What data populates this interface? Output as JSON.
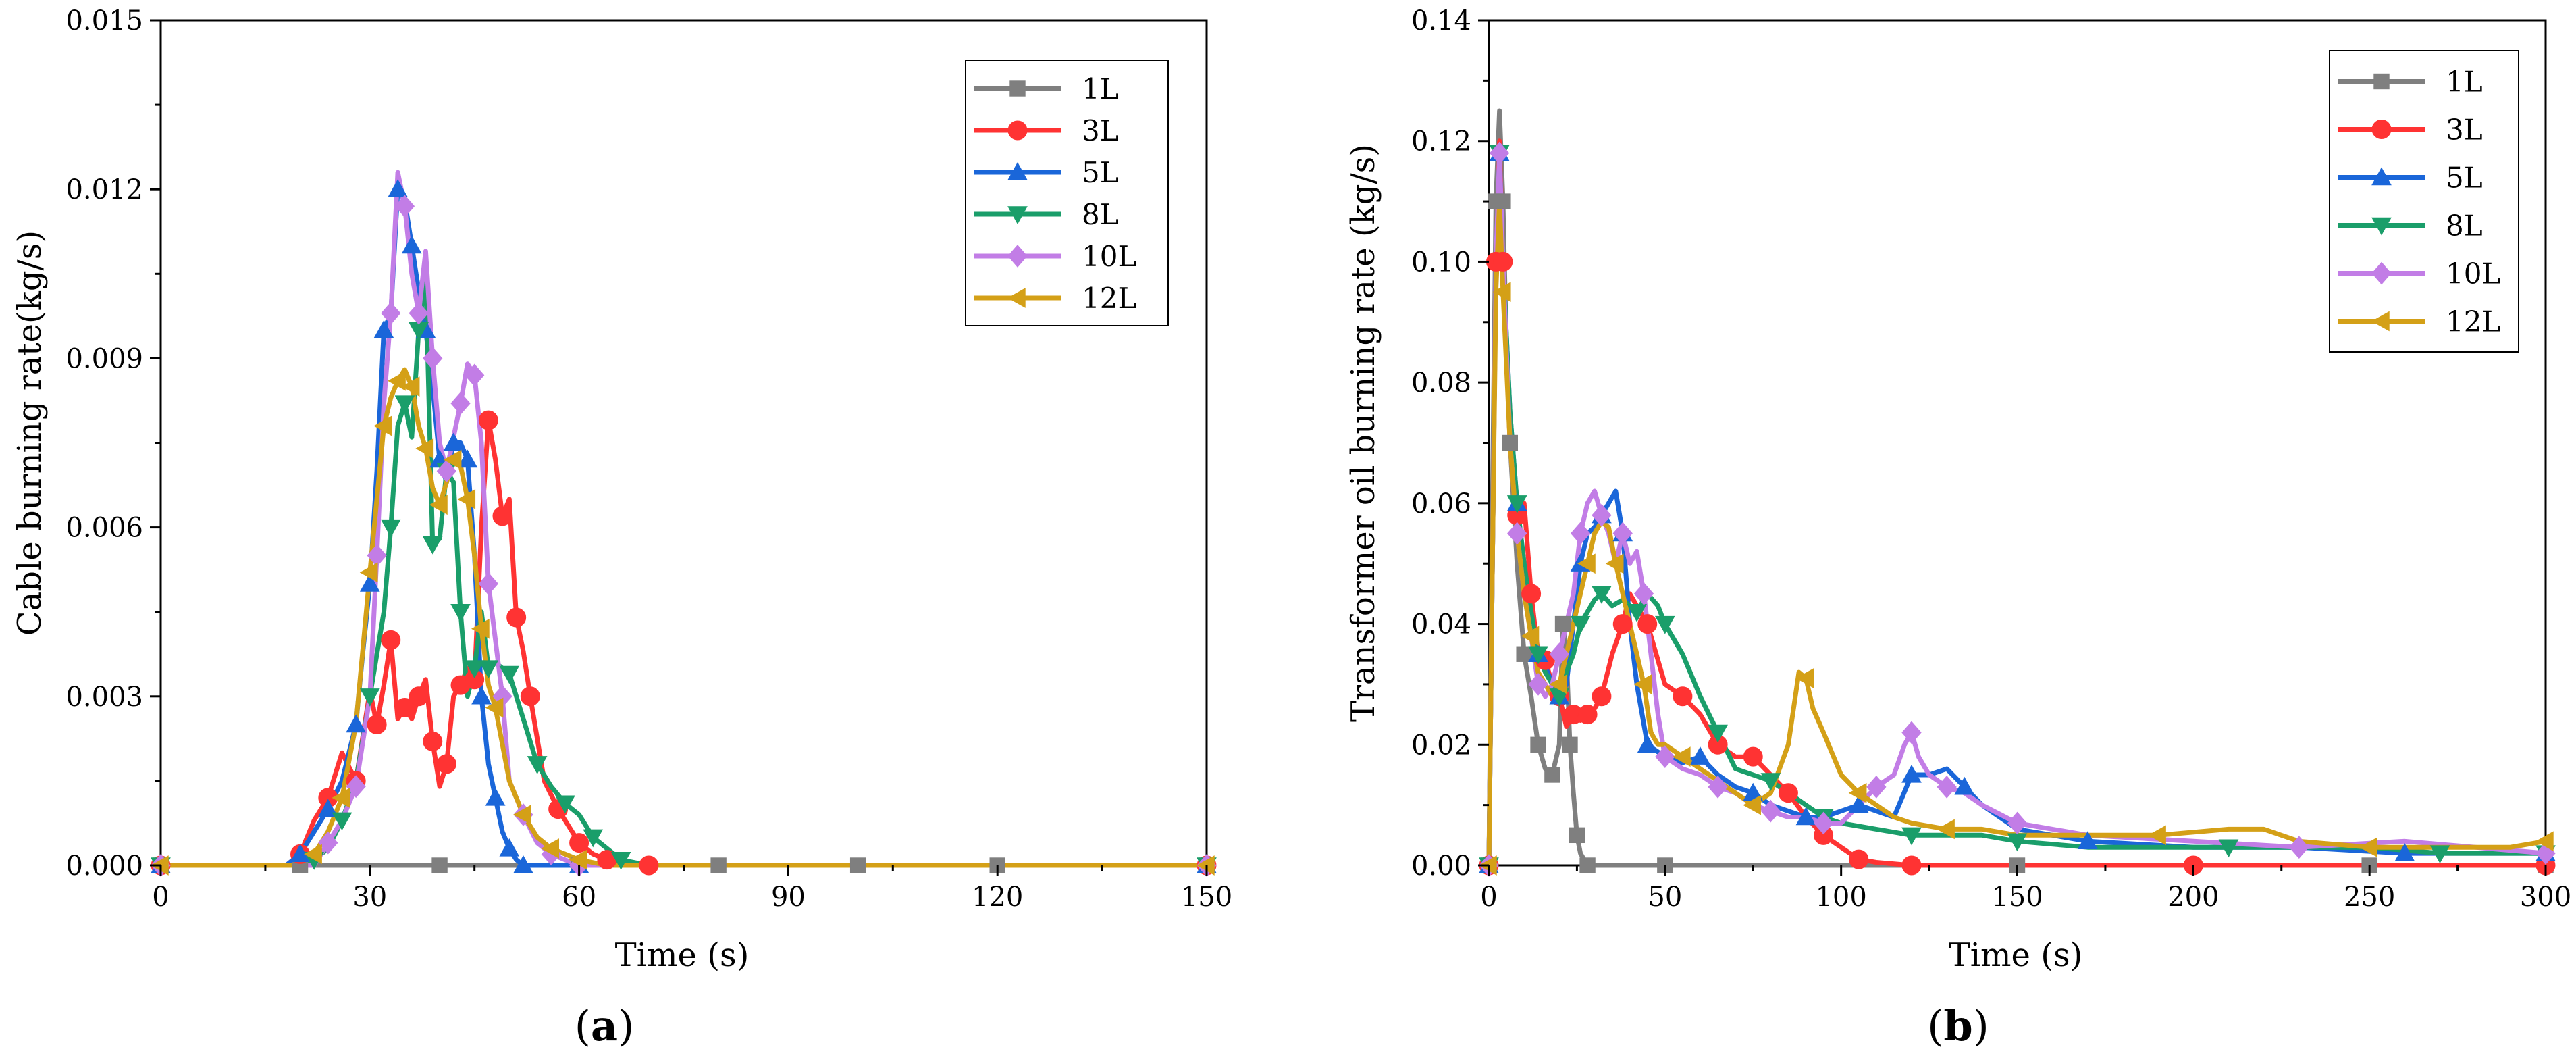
{
  "chart_data": [
    {
      "type": "line",
      "panel_label": "a",
      "xlabel": "Time (s)",
      "ylabel": "Cable burning rate(kg/s)",
      "xlim": [
        0,
        150
      ],
      "ylim": [
        0,
        0.015
      ],
      "xticks": [
        0,
        30,
        60,
        90,
        120,
        150
      ],
      "xtick_labels": [
        "0",
        "30",
        "60",
        "90",
        "120",
        "150"
      ],
      "yticks": [
        0,
        0.003,
        0.006,
        0.009,
        0.012,
        0.015
      ],
      "ytick_labels": [
        "0.000",
        "0.003",
        "0.006",
        "0.009",
        "0.012",
        "0.015"
      ],
      "grid": false,
      "legend_position": "top-right",
      "series": [
        {
          "name": "1L",
          "color": "#7f7f7f",
          "marker": "square",
          "x": [
            0,
            20,
            40,
            60,
            80,
            100,
            120,
            150
          ],
          "y": [
            0,
            0,
            0,
            0,
            0,
            0,
            0,
            0
          ]
        },
        {
          "name": "3L",
          "color": "#ff3333",
          "marker": "circle",
          "x": [
            0,
            18,
            20,
            22,
            24,
            26,
            28,
            30,
            31,
            32,
            33,
            34,
            35,
            36,
            37,
            38,
            39,
            40,
            41,
            42,
            43,
            44,
            45,
            46,
            47,
            48,
            49,
            50,
            51,
            52,
            53,
            55,
            57,
            58,
            60,
            62,
            64,
            66,
            70,
            150
          ],
          "y": [
            0,
            0,
            0.0002,
            0.0008,
            0.0012,
            0.002,
            0.0015,
            0.0031,
            0.0025,
            0.0032,
            0.004,
            0.0026,
            0.0028,
            0.0026,
            0.003,
            0.0033,
            0.0022,
            0.0014,
            0.0018,
            0.003,
            0.0032,
            0.0035,
            0.0033,
            0.006,
            0.0079,
            0.0072,
            0.0062,
            0.0065,
            0.0044,
            0.0038,
            0.003,
            0.0015,
            0.001,
            0.0008,
            0.0004,
            0.0002,
            0.0001,
            0,
            0,
            0
          ]
        },
        {
          "name": "5L",
          "color": "#1a66d9",
          "marker": "triangle-up",
          "x": [
            0,
            18,
            20,
            22,
            24,
            26,
            28,
            29,
            30,
            31,
            32,
            33,
            34,
            35,
            36,
            37,
            38,
            39,
            40,
            41,
            42,
            43,
            44,
            45,
            46,
            47,
            48,
            49,
            50,
            51,
            52,
            55,
            60,
            150
          ],
          "y": [
            0,
            0,
            0.0002,
            0.0006,
            0.001,
            0.0015,
            0.0025,
            0.0038,
            0.005,
            0.007,
            0.0095,
            0.0098,
            0.012,
            0.0118,
            0.011,
            0.0102,
            0.0095,
            0.0085,
            0.0072,
            0.0068,
            0.0075,
            0.0075,
            0.0072,
            0.0055,
            0.003,
            0.0018,
            0.0012,
            0.0006,
            0.0003,
            0.0001,
            0,
            0,
            0,
            0
          ]
        },
        {
          "name": "8L",
          "color": "#1a9e6a",
          "marker": "triangle-down",
          "x": [
            0,
            20,
            22,
            24,
            26,
            28,
            30,
            32,
            33,
            34,
            35,
            36,
            37,
            38,
            39,
            40,
            41,
            42,
            43,
            44,
            45,
            46,
            47,
            48,
            50,
            52,
            54,
            56,
            58,
            60,
            62,
            64,
            66,
            70,
            150
          ],
          "y": [
            0,
            0,
            0.0001,
            0.0003,
            0.0008,
            0.0015,
            0.003,
            0.0045,
            0.006,
            0.0078,
            0.0082,
            0.0076,
            0.0095,
            0.0105,
            0.0057,
            0.0058,
            0.007,
            0.0068,
            0.0045,
            0.003,
            0.0035,
            0.0045,
            0.0035,
            0.0036,
            0.0034,
            0.0026,
            0.0018,
            0.0014,
            0.0011,
            0.0009,
            0.0005,
            0.0003,
            0.0001,
            0,
            0
          ]
        },
        {
          "name": "10L",
          "color": "#c27de6",
          "marker": "diamond",
          "x": [
            0,
            22,
            24,
            26,
            28,
            30,
            31,
            32,
            33,
            34,
            35,
            36,
            37,
            38,
            39,
            40,
            41,
            42,
            43,
            44,
            45,
            46,
            47,
            48,
            49,
            50,
            52,
            54,
            56,
            58,
            60,
            150
          ],
          "y": [
            0,
            0,
            0.0004,
            0.0008,
            0.0014,
            0.003,
            0.0055,
            0.0082,
            0.0098,
            0.0123,
            0.0117,
            0.0105,
            0.0098,
            0.0109,
            0.009,
            0.0075,
            0.007,
            0.0076,
            0.0082,
            0.0089,
            0.0087,
            0.0075,
            0.005,
            0.004,
            0.003,
            0.0015,
            0.0009,
            0.0004,
            0.0002,
            0.0001,
            0,
            0
          ]
        },
        {
          "name": "12L",
          "color": "#d4a017",
          "marker": "triangle-left",
          "x": [
            0,
            20,
            22,
            24,
            26,
            28,
            30,
            31,
            32,
            33,
            34,
            35,
            36,
            37,
            38,
            39,
            40,
            41,
            42,
            43,
            44,
            45,
            46,
            47,
            48,
            50,
            52,
            54,
            56,
            58,
            60,
            64,
            150
          ],
          "y": [
            0,
            0,
            0.0002,
            0.0006,
            0.0012,
            0.0025,
            0.0052,
            0.0065,
            0.0078,
            0.0083,
            0.0086,
            0.0088,
            0.0085,
            0.0078,
            0.0074,
            0.0067,
            0.0064,
            0.0068,
            0.0072,
            0.0071,
            0.0065,
            0.0055,
            0.0042,
            0.0032,
            0.0028,
            0.0015,
            0.0009,
            0.0005,
            0.0003,
            0.0002,
            0.0001,
            0,
            0
          ]
        }
      ]
    },
    {
      "type": "line",
      "panel_label": "b",
      "xlabel": "Time (s)",
      "ylabel": "Transformer oil burning rate (kg/s)",
      "xlim": [
        0,
        300
      ],
      "ylim": [
        0,
        0.14
      ],
      "xticks": [
        0,
        50,
        100,
        150,
        200,
        250,
        300
      ],
      "xtick_labels": [
        "0",
        "50",
        "100",
        "150",
        "200",
        "250",
        "300"
      ],
      "yticks": [
        0,
        0.02,
        0.04,
        0.06,
        0.08,
        0.1,
        0.12,
        0.14
      ],
      "ytick_labels": [
        "0.00",
        "0.02",
        "0.04",
        "0.06",
        "0.08",
        "0.10",
        "0.12",
        "0.14"
      ],
      "grid": false,
      "legend_position": "top-right",
      "series": [
        {
          "name": "1L",
          "color": "#7f7f7f",
          "marker": "square",
          "x": [
            0,
            1,
            2,
            3,
            4,
            5,
            6,
            8,
            10,
            12,
            14,
            16,
            18,
            20,
            21,
            22,
            23,
            24,
            25,
            26,
            28,
            30,
            50,
            100,
            150,
            200,
            250,
            300
          ],
          "y": [
            0,
            0.06,
            0.11,
            0.125,
            0.11,
            0.085,
            0.07,
            0.05,
            0.035,
            0.028,
            0.02,
            0.016,
            0.015,
            0.02,
            0.04,
            0.035,
            0.02,
            0.012,
            0.005,
            0.002,
            0,
            0,
            0,
            0,
            0,
            0,
            0,
            0
          ]
        },
        {
          "name": "3L",
          "color": "#ff3333",
          "marker": "circle",
          "x": [
            0,
            1,
            2,
            3,
            4,
            6,
            8,
            10,
            12,
            14,
            16,
            18,
            20,
            22,
            24,
            26,
            28,
            30,
            32,
            35,
            38,
            40,
            45,
            50,
            55,
            60,
            65,
            70,
            75,
            80,
            85,
            90,
            95,
            100,
            105,
            110,
            120,
            150,
            200,
            250,
            300
          ],
          "y": [
            0,
            0.05,
            0.1,
            0.12,
            0.1,
            0.07,
            0.058,
            0.06,
            0.045,
            0.035,
            0.034,
            0.03,
            0.028,
            0.023,
            0.025,
            0.024,
            0.025,
            0.026,
            0.028,
            0.035,
            0.04,
            0.045,
            0.04,
            0.03,
            0.028,
            0.025,
            0.02,
            0.018,
            0.018,
            0.015,
            0.012,
            0.008,
            0.005,
            0.003,
            0.001,
            0.0005,
            0,
            0,
            0,
            0,
            0
          ]
        },
        {
          "name": "5L",
          "color": "#1a66d9",
          "marker": "triangle-up",
          "x": [
            0,
            1,
            2,
            3,
            4,
            6,
            8,
            10,
            12,
            14,
            16,
            18,
            20,
            22,
            24,
            26,
            28,
            30,
            32,
            34,
            36,
            38,
            40,
            42,
            45,
            50,
            55,
            60,
            65,
            70,
            75,
            80,
            85,
            90,
            95,
            100,
            105,
            110,
            115,
            120,
            125,
            130,
            135,
            140,
            150,
            170,
            200,
            230,
            260,
            300
          ],
          "y": [
            0,
            0.05,
            0.1,
            0.118,
            0.1,
            0.075,
            0.06,
            0.05,
            0.04,
            0.035,
            0.033,
            0.03,
            0.028,
            0.03,
            0.04,
            0.05,
            0.055,
            0.056,
            0.058,
            0.06,
            0.062,
            0.055,
            0.04,
            0.03,
            0.02,
            0.018,
            0.017,
            0.018,
            0.015,
            0.013,
            0.012,
            0.01,
            0.009,
            0.008,
            0.008,
            0.009,
            0.01,
            0.009,
            0.008,
            0.015,
            0.015,
            0.016,
            0.013,
            0.01,
            0.006,
            0.004,
            0.003,
            0.003,
            0.002,
            0.002
          ]
        },
        {
          "name": "8L",
          "color": "#1a9e6a",
          "marker": "triangle-down",
          "x": [
            0,
            1,
            2,
            3,
            4,
            6,
            8,
            10,
            12,
            14,
            16,
            18,
            20,
            22,
            24,
            26,
            28,
            30,
            32,
            35,
            38,
            42,
            45,
            48,
            50,
            55,
            60,
            65,
            70,
            75,
            80,
            85,
            90,
            95,
            100,
            110,
            120,
            130,
            140,
            150,
            170,
            190,
            210,
            230,
            250,
            270,
            300
          ],
          "y": [
            0,
            0.05,
            0.1,
            0.118,
            0.1,
            0.075,
            0.06,
            0.05,
            0.042,
            0.035,
            0.032,
            0.03,
            0.028,
            0.032,
            0.035,
            0.04,
            0.042,
            0.044,
            0.045,
            0.043,
            0.044,
            0.042,
            0.045,
            0.043,
            0.04,
            0.035,
            0.028,
            0.022,
            0.016,
            0.015,
            0.014,
            0.012,
            0.01,
            0.008,
            0.007,
            0.006,
            0.005,
            0.005,
            0.005,
            0.004,
            0.003,
            0.003,
            0.003,
            0.003,
            0.003,
            0.002,
            0.002
          ]
        },
        {
          "name": "10L",
          "color": "#c27de6",
          "marker": "diamond",
          "x": [
            0,
            1,
            2,
            3,
            4,
            6,
            8,
            10,
            12,
            14,
            16,
            18,
            20,
            22,
            24,
            26,
            28,
            30,
            32,
            34,
            36,
            38,
            40,
            42,
            44,
            46,
            48,
            50,
            55,
            60,
            65,
            70,
            75,
            80,
            85,
            90,
            95,
            100,
            105,
            110,
            115,
            118,
            120,
            122,
            125,
            130,
            135,
            140,
            150,
            170,
            200,
            230,
            260,
            280,
            300
          ],
          "y": [
            0,
            0.05,
            0.1,
            0.118,
            0.1,
            0.07,
            0.055,
            0.045,
            0.038,
            0.03,
            0.028,
            0.03,
            0.035,
            0.04,
            0.045,
            0.055,
            0.06,
            0.062,
            0.058,
            0.055,
            0.05,
            0.055,
            0.05,
            0.052,
            0.045,
            0.035,
            0.025,
            0.018,
            0.016,
            0.015,
            0.013,
            0.012,
            0.01,
            0.009,
            0.008,
            0.008,
            0.007,
            0.007,
            0.01,
            0.013,
            0.015,
            0.02,
            0.022,
            0.018,
            0.015,
            0.013,
            0.012,
            0.01,
            0.007,
            0.005,
            0.004,
            0.003,
            0.004,
            0.003,
            0.002
          ]
        },
        {
          "name": "12L",
          "color": "#d4a017",
          "marker": "triangle-left",
          "x": [
            0,
            1,
            2,
            3,
            4,
            6,
            8,
            10,
            12,
            14,
            16,
            18,
            20,
            22,
            24,
            26,
            28,
            30,
            32,
            34,
            36,
            38,
            40,
            42,
            44,
            46,
            48,
            50,
            55,
            60,
            65,
            70,
            75,
            80,
            85,
            88,
            90,
            92,
            95,
            100,
            105,
            110,
            115,
            120,
            130,
            140,
            150,
            170,
            190,
            210,
            220,
            230,
            250,
            270,
            290,
            300
          ],
          "y": [
            0,
            0.05,
            0.095,
            0.11,
            0.095,
            0.07,
            0.055,
            0.045,
            0.038,
            0.032,
            0.03,
            0.028,
            0.03,
            0.035,
            0.04,
            0.045,
            0.05,
            0.055,
            0.057,
            0.056,
            0.05,
            0.045,
            0.04,
            0.035,
            0.03,
            0.022,
            0.02,
            0.02,
            0.018,
            0.016,
            0.014,
            0.012,
            0.01,
            0.012,
            0.02,
            0.032,
            0.031,
            0.026,
            0.022,
            0.015,
            0.012,
            0.01,
            0.008,
            0.007,
            0.006,
            0.006,
            0.005,
            0.005,
            0.005,
            0.006,
            0.006,
            0.004,
            0.003,
            0.003,
            0.003,
            0.004
          ]
        }
      ]
    }
  ]
}
